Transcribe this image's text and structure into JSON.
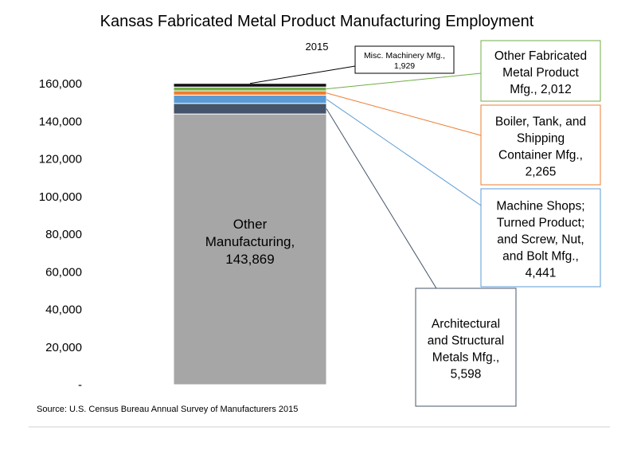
{
  "chart_data": {
    "type": "bar",
    "stacked": true,
    "title": "Kansas Fabricated Metal Product Manufacturing Employment",
    "categories": [
      "2015"
    ],
    "ylim": [
      0,
      160000
    ],
    "y_ticks": [
      "-",
      "20,000",
      "40,000",
      "60,000",
      "80,000",
      "100,000",
      "120,000",
      "140,000",
      "160,000"
    ],
    "grid": false,
    "legend": "none",
    "series": [
      {
        "key": "other_mfg",
        "value": 143869,
        "color": "#a6a6a6",
        "label": [
          "Other",
          "Manufacturing,",
          "143,869"
        ]
      },
      {
        "key": "architectural",
        "value": 5598,
        "color": "#44546a",
        "label": [
          "Architectural",
          "and Structural",
          "Metals Mfg.,",
          "5,598"
        ]
      },
      {
        "key": "machine_shops",
        "value": 4441,
        "color": "#5b9bd5",
        "label": [
          "Machine Shops;",
          "Turned Product;",
          "and Screw, Nut,",
          "and Bolt Mfg.,",
          "4,441"
        ]
      },
      {
        "key": "boiler",
        "value": 2265,
        "color": "#ed7d31",
        "label": [
          "Boiler, Tank, and",
          "Shipping",
          "Container Mfg.,",
          "2,265"
        ]
      },
      {
        "key": "other_fab",
        "value": 2012,
        "color": "#70ad47",
        "label": [
          "Other Fabricated",
          "Metal Product",
          "Mfg.,  2,012"
        ]
      },
      {
        "key": "misc_machinery",
        "value": 1929,
        "color": "#111111",
        "label": [
          "Misc. Machinery Mfg.,",
          "1,929"
        ]
      }
    ],
    "source": "Source:  U.S. Census Bureau Annual Survey of Manufacturers 2015"
  }
}
